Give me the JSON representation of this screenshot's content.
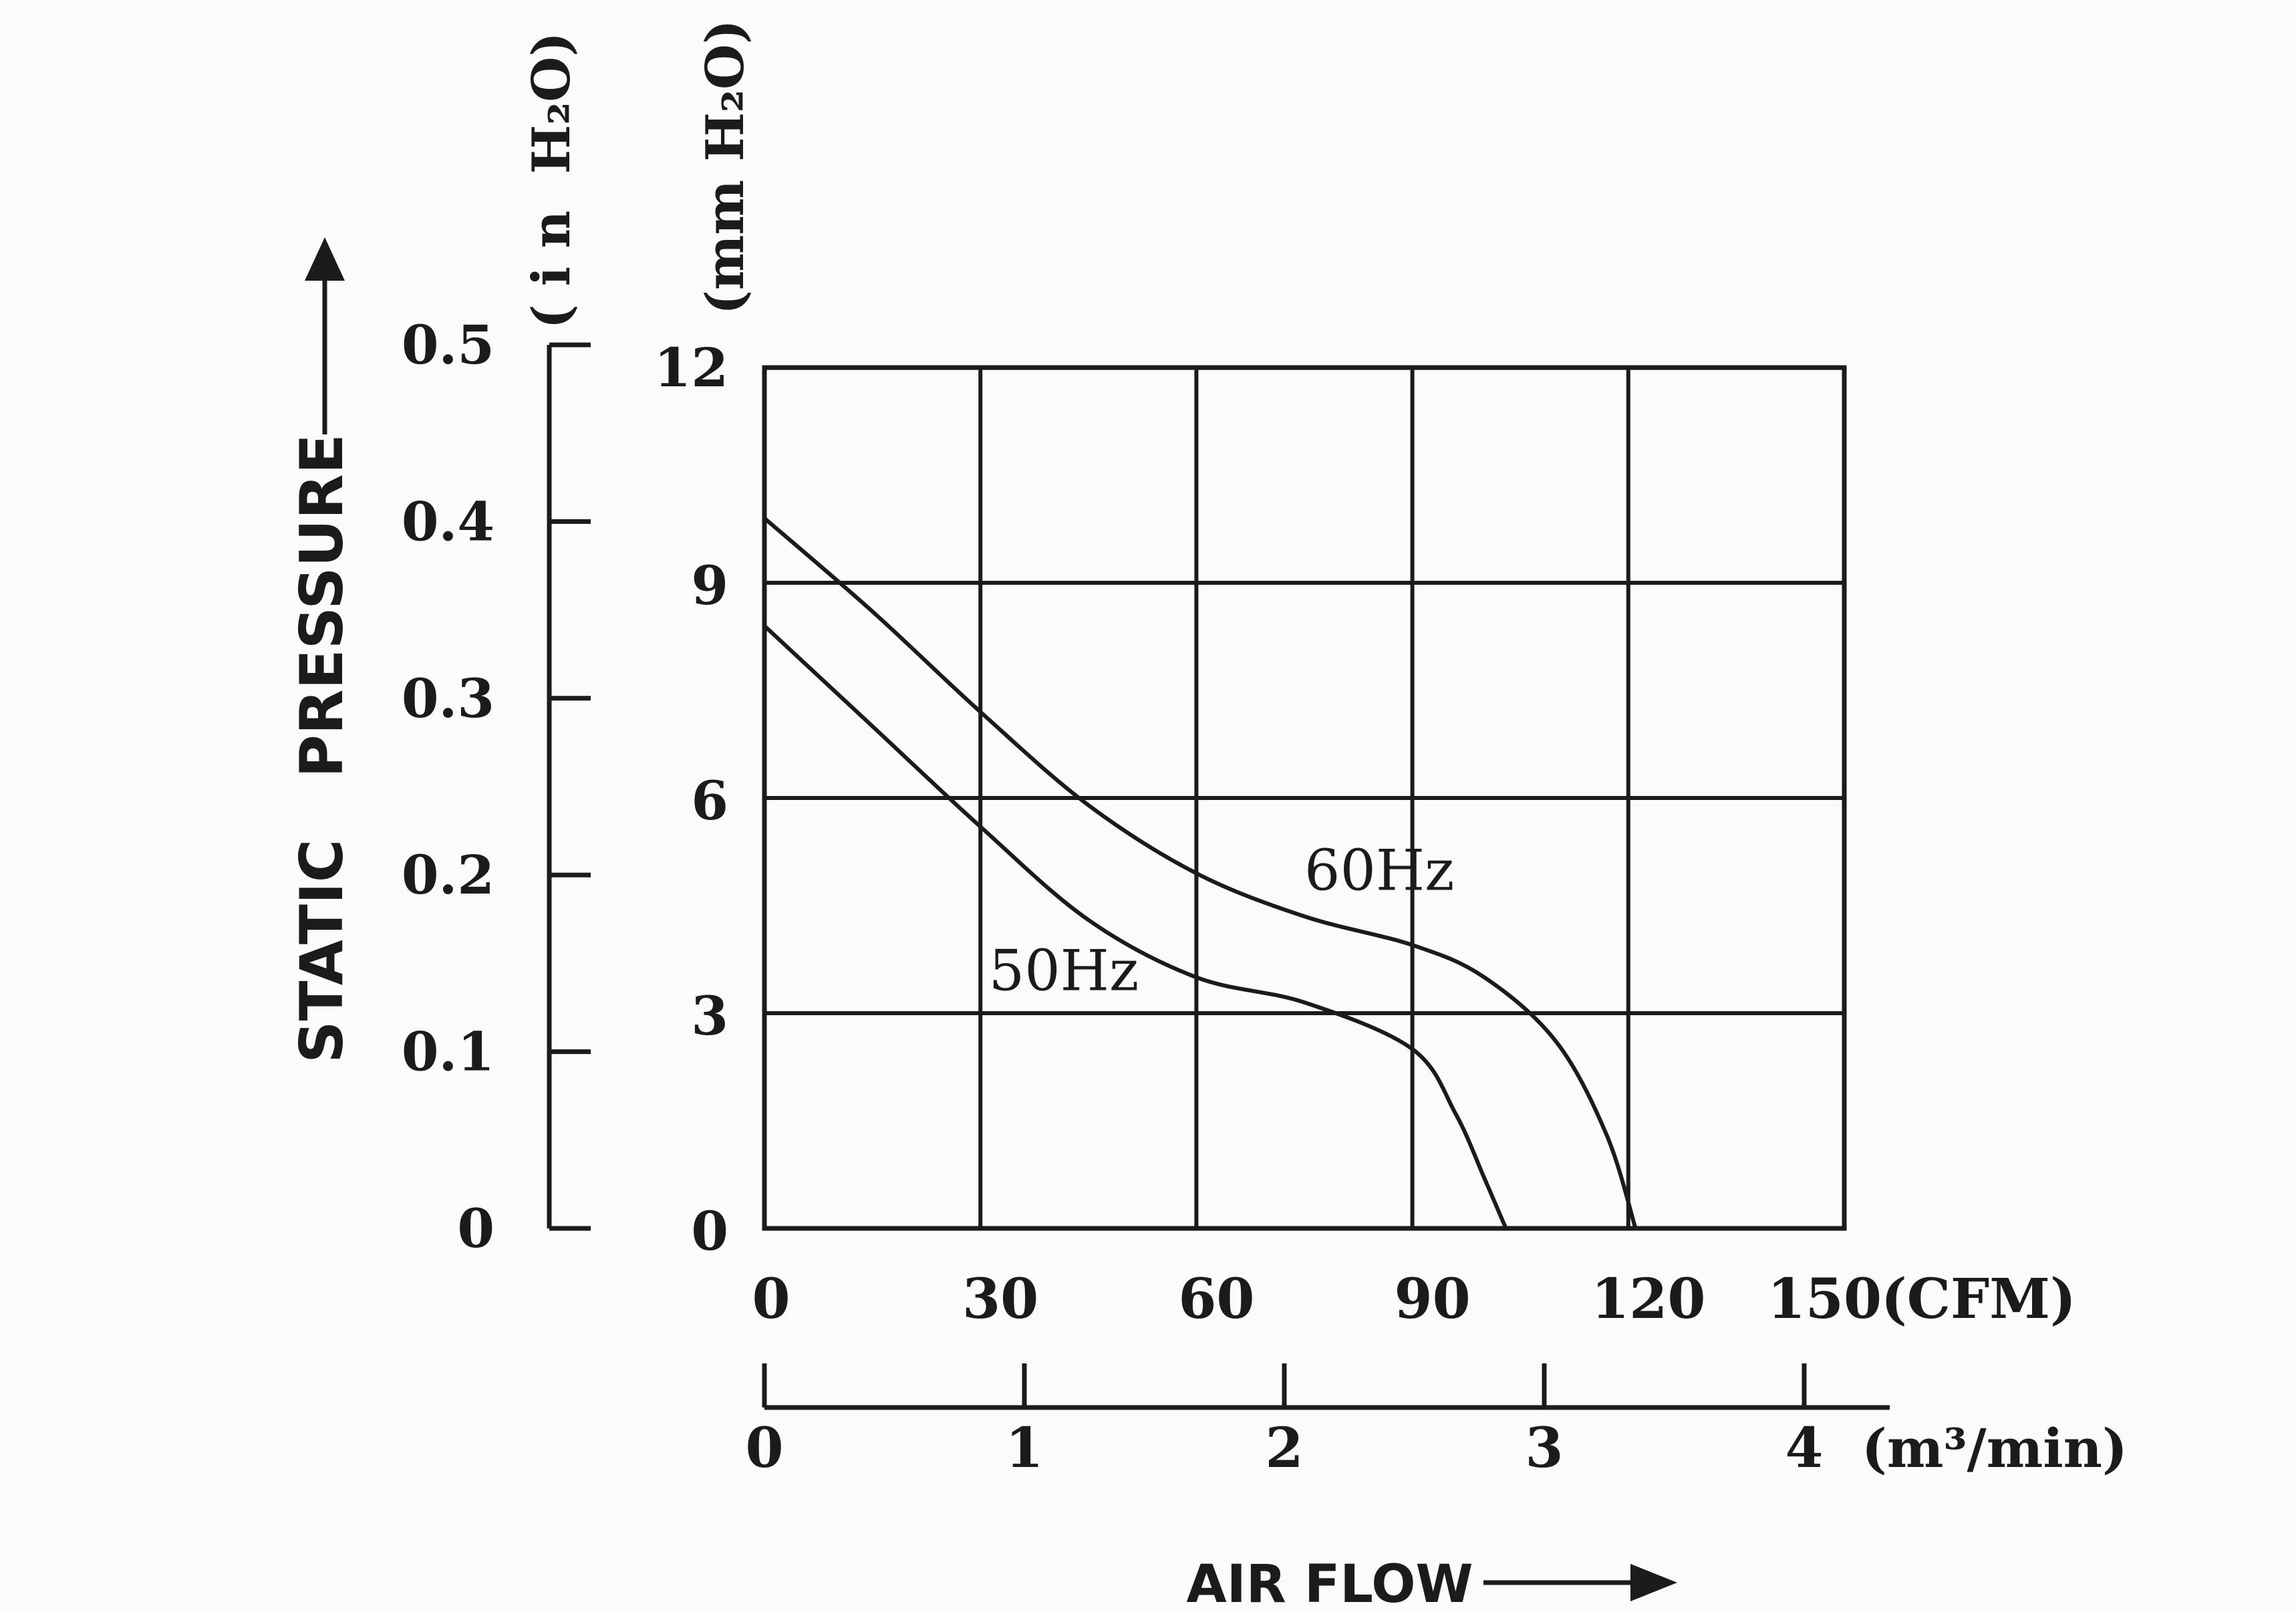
{
  "chart_data": {
    "type": "line",
    "ylabel": "STATIC   PRESSURE",
    "xlabel": "AIR FLOW",
    "y_primary": {
      "unit": "(mm H₂O)",
      "range": [
        0,
        12
      ],
      "ticks": [
        "0",
        "3",
        "6",
        "9",
        "12"
      ],
      "tick_values": [
        0,
        3,
        6,
        9,
        12
      ]
    },
    "y_secondary": {
      "unit": "( i n  H₂O)",
      "range": [
        0,
        0.5
      ],
      "ticks": [
        "0",
        "0.1",
        "0.2",
        "0.3",
        "0.4",
        "0.5"
      ],
      "tick_values": [
        0,
        0.1,
        0.2,
        0.3,
        0.4,
        0.5
      ]
    },
    "x_primary": {
      "unit": "(CFM)",
      "range": [
        0,
        150
      ],
      "ticks": [
        "0",
        "30",
        "60",
        "90",
        "120",
        "150"
      ],
      "tick_values": [
        0,
        30,
        60,
        90,
        120,
        150
      ]
    },
    "x_secondary": {
      "unit": "(m³/min)",
      "range": [
        0,
        4
      ],
      "ticks": [
        "0",
        "1",
        "2",
        "3",
        "4"
      ],
      "tick_values": [
        0,
        1,
        2,
        3,
        4
      ]
    },
    "grid": true,
    "series": [
      {
        "name": "60Hz",
        "x": [
          0,
          15,
          30,
          45,
          60,
          75,
          90,
          100,
          110,
          117,
          121
        ],
        "y": [
          9.9,
          8.6,
          7.2,
          5.9,
          4.95,
          4.35,
          3.95,
          3.5,
          2.6,
          1.3,
          0
        ]
      },
      {
        "name": "50Hz",
        "x": [
          0,
          15,
          30,
          45,
          60,
          75,
          90,
          96,
          100,
          103
        ],
        "y": [
          8.4,
          7.0,
          5.6,
          4.3,
          3.5,
          3.15,
          2.5,
          1.6,
          0.7,
          0
        ]
      }
    ]
  }
}
